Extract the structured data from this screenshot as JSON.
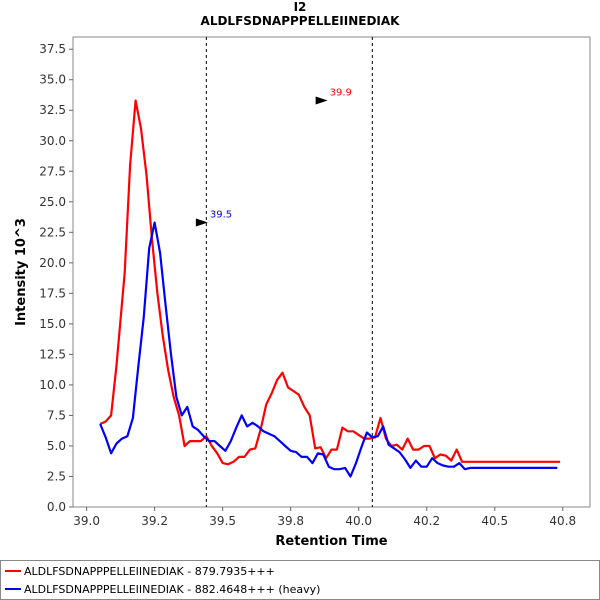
{
  "chart_data": {
    "type": "line",
    "title": "I2",
    "subtitle": "ALDLFSDNAPPPELLEIINEDIAK",
    "xlabel": "Retention Time",
    "ylabel": "Intensity 10^3",
    "xlim": [
      38.95,
      40.85
    ],
    "ylim": [
      0,
      38.5
    ],
    "x_ticks": [
      "39.0",
      "39.2",
      "39.5",
      "39.8",
      "40.0",
      "40.2",
      "40.5",
      "40.8"
    ],
    "x_tick_values": [
      39.0,
      39.25,
      39.5,
      39.75,
      40.0,
      40.25,
      40.5,
      40.75
    ],
    "y_ticks": [
      "0.0",
      "2.5",
      "5.0",
      "7.5",
      "10.0",
      "12.5",
      "15.0",
      "17.5",
      "20.0",
      "22.5",
      "25.0",
      "27.5",
      "30.0",
      "32.5",
      "35.0",
      "37.5"
    ],
    "y_tick_values": [
      0,
      2.5,
      5,
      7.5,
      10,
      12.5,
      15,
      17.5,
      20,
      22.5,
      25,
      27.5,
      30,
      32.5,
      35,
      37.5
    ],
    "vlines": [
      39.44,
      40.05
    ],
    "series": [
      {
        "name": "ALDLFSDNAPPPELLEIINEDIAK - 879.7935+++",
        "color": "#ff0000",
        "x": [
          39.05,
          39.07,
          39.09,
          39.11,
          39.14,
          39.16,
          39.18,
          39.2,
          39.22,
          39.24,
          39.26,
          39.28,
          39.3,
          39.32,
          39.34,
          39.36,
          39.38,
          39.4,
          39.42,
          39.44,
          39.46,
          39.48,
          39.5,
          39.52,
          39.54,
          39.56,
          39.58,
          39.6,
          39.62,
          39.64,
          39.66,
          39.68,
          39.7,
          39.72,
          39.74,
          39.76,
          39.78,
          39.8,
          39.82,
          39.84,
          39.86,
          39.88,
          39.9,
          39.92,
          39.94,
          39.96,
          39.98,
          40.0,
          40.02,
          40.04,
          40.06,
          40.08,
          40.1,
          40.12,
          40.14,
          40.16,
          40.18,
          40.2,
          40.22,
          40.24,
          40.26,
          40.28,
          40.3,
          40.32,
          40.34,
          40.36,
          40.38,
          40.4,
          40.42,
          40.44,
          40.46,
          40.48,
          40.5,
          40.52,
          40.54,
          40.56,
          40.58,
          40.6,
          40.62,
          40.64,
          40.66,
          40.68,
          40.7,
          40.72,
          40.74
        ],
        "y": [
          6.8,
          7.0,
          7.5,
          11.6,
          19.2,
          28.0,
          33.3,
          31.0,
          27.2,
          22.0,
          17.5,
          14.0,
          11.2,
          9.0,
          7.5,
          5.0,
          5.4,
          5.4,
          5.4,
          5.8,
          5.0,
          4.4,
          3.6,
          3.5,
          3.7,
          4.1,
          4.1,
          4.7,
          4.8,
          6.4,
          8.4,
          9.3,
          10.4,
          11.0,
          9.8,
          9.5,
          9.2,
          8.2,
          7.5,
          4.8,
          4.9,
          4.0,
          4.7,
          4.7,
          6.5,
          6.2,
          6.2,
          5.9,
          5.6,
          5.6,
          5.7,
          7.3,
          5.6,
          5.0,
          5.1,
          4.7,
          5.6,
          4.7,
          4.7,
          5.0,
          5.0,
          4.0,
          4.3,
          4.2,
          3.8,
          4.7,
          3.7,
          3.7,
          3.7,
          3.7,
          3.7,
          3.7,
          3.7,
          3.7,
          3.7,
          3.7,
          3.7,
          3.7,
          3.7,
          3.7,
          3.7,
          3.7,
          3.7,
          3.7,
          3.7
        ]
      },
      {
        "name": "ALDLFSDNAPPPELLEIINEDIAK - 882.4648+++ (heavy)",
        "color": "#0000ff",
        "x": [
          39.05,
          39.07,
          39.09,
          39.11,
          39.13,
          39.15,
          39.17,
          39.19,
          39.21,
          39.23,
          39.25,
          39.27,
          39.29,
          39.31,
          39.33,
          39.35,
          39.37,
          39.39,
          39.41,
          39.43,
          39.45,
          39.47,
          39.49,
          39.51,
          39.53,
          39.55,
          39.57,
          39.59,
          39.61,
          39.63,
          39.65,
          39.67,
          39.69,
          39.71,
          39.73,
          39.75,
          39.77,
          39.79,
          39.81,
          39.83,
          39.85,
          39.87,
          39.89,
          39.91,
          39.93,
          39.95,
          39.97,
          39.99,
          40.01,
          40.03,
          40.05,
          40.07,
          40.09,
          40.11,
          40.13,
          40.15,
          40.17,
          40.19,
          40.21,
          40.23,
          40.25,
          40.27,
          40.29,
          40.31,
          40.33,
          40.35,
          40.37,
          40.39,
          40.41,
          40.43,
          40.45,
          40.47,
          40.49,
          40.51,
          40.53,
          40.55,
          40.57,
          40.59,
          40.61,
          40.63,
          40.65,
          40.67,
          40.69,
          40.71,
          40.73
        ],
        "y": [
          6.8,
          5.7,
          4.4,
          5.2,
          5.6,
          5.8,
          7.3,
          11.5,
          15.5,
          21.2,
          23.3,
          20.8,
          16.6,
          12.5,
          9.0,
          7.5,
          8.2,
          6.6,
          6.3,
          5.8,
          5.4,
          5.4,
          5.0,
          4.6,
          5.4,
          6.5,
          7.5,
          6.6,
          6.9,
          6.6,
          6.2,
          6.0,
          5.8,
          5.4,
          5.0,
          4.6,
          4.5,
          4.1,
          4.1,
          3.6,
          4.4,
          4.3,
          3.3,
          3.1,
          3.1,
          3.2,
          2.5,
          3.6,
          4.9,
          6.1,
          5.7,
          5.8,
          6.6,
          5.1,
          4.8,
          4.5,
          3.9,
          3.2,
          3.8,
          3.3,
          3.3,
          4.0,
          3.6,
          3.4,
          3.3,
          3.3,
          3.6,
          3.1,
          3.2,
          3.2,
          3.2,
          3.2,
          3.2,
          3.2,
          3.2,
          3.2,
          3.2,
          3.2,
          3.2,
          3.2,
          3.2,
          3.2,
          3.2,
          3.2,
          3.2
        ]
      }
    ],
    "annotations": [
      {
        "label": "39.9",
        "x": 39.86,
        "y": 33.3,
        "color": "#ff0000"
      },
      {
        "label": "39.5",
        "x": 39.42,
        "y": 23.3,
        "color": "#0000ff"
      }
    ],
    "grid": false,
    "legend_position": "bottom"
  }
}
